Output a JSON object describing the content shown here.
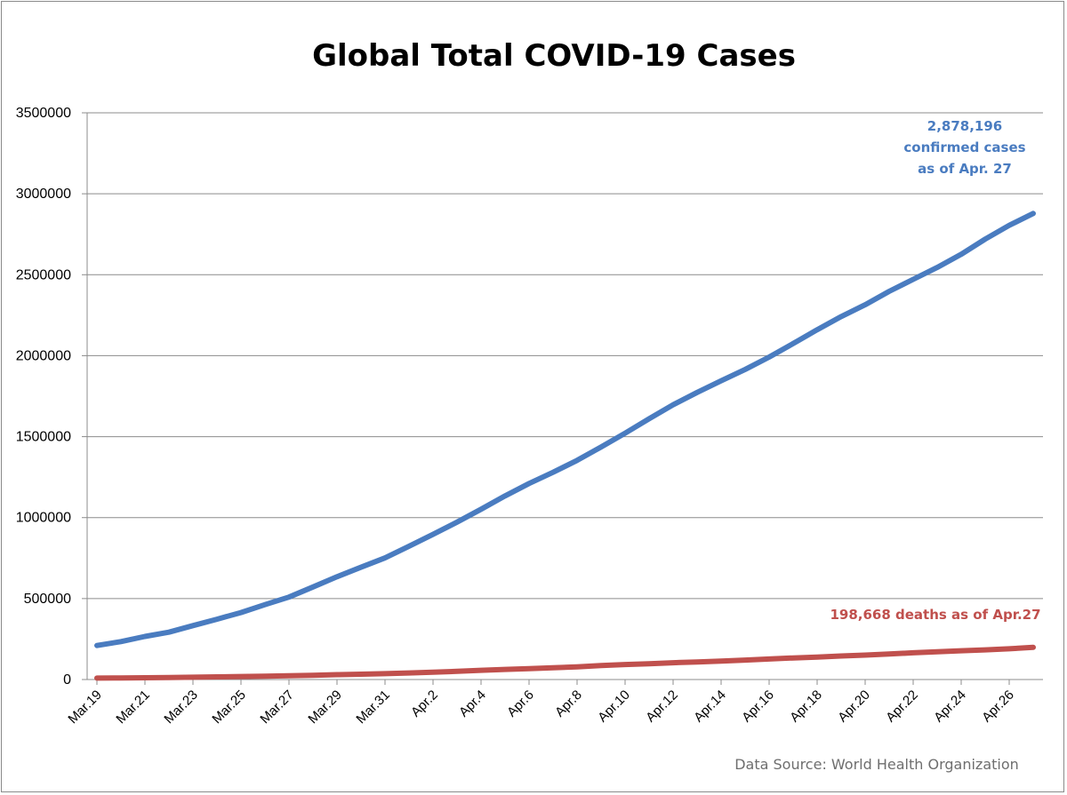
{
  "chart_data": {
    "type": "line",
    "title": "Global Total COVID-19 Cases",
    "xlabel": "",
    "ylabel": "",
    "ylim": [
      0,
      3500000
    ],
    "yticks": [
      0,
      500000,
      1000000,
      1500000,
      2000000,
      2500000,
      3000000,
      3500000
    ],
    "ytick_labels": [
      "0",
      "500000",
      "1000000",
      "1500000",
      "2000000",
      "2500000",
      "3000000",
      "3500000"
    ],
    "grid": true,
    "x": [
      "Mar.19",
      "Mar.20",
      "Mar.21",
      "Mar.22",
      "Mar.23",
      "Mar.24",
      "Mar.25",
      "Mar.26",
      "Mar.27",
      "Mar.28",
      "Mar.29",
      "Mar.30",
      "Mar.31",
      "Apr.1",
      "Apr.2",
      "Apr.3",
      "Apr.4",
      "Apr.5",
      "Apr.6",
      "Apr.7",
      "Apr.8",
      "Apr.9",
      "Apr.10",
      "Apr.11",
      "Apr.12",
      "Apr.13",
      "Apr.14",
      "Apr.15",
      "Apr.16",
      "Apr.17",
      "Apr.18",
      "Apr.19",
      "Apr.20",
      "Apr.21",
      "Apr.22",
      "Apr.23",
      "Apr.24",
      "Apr.25",
      "Apr.26",
      "Apr.27"
    ],
    "xtick_labels": [
      "Mar.19",
      "Mar.21",
      "Mar.23",
      "Mar.25",
      "Mar.27",
      "Mar.29",
      "Mar.31",
      "Apr.2",
      "Apr.4",
      "Apr.6",
      "Apr.8",
      "Apr.10",
      "Apr.12",
      "Apr.14",
      "Apr.16",
      "Apr.18",
      "Apr.20",
      "Apr.22",
      "Apr.24",
      "Apr.26"
    ],
    "series": [
      {
        "color": "#4a7cc0",
        "values": [
          209839,
          234073,
          266073,
          292142,
          332930,
          372757,
          413467,
          462684,
          509164,
          571678,
          634835,
          693224,
          750890,
          823626,
          896450,
          972303,
          1051635,
          1133758,
          1210956,
          1279722,
          1353361,
          1436198,
          1521252,
          1610909,
          1696588,
          1773084,
          1844863,
          1914916,
          1991562,
          2074529,
          2160207,
          2241778,
          2314621,
          2397216,
          2471136,
          2544792,
          2626321,
          2719896,
          2804796,
          2878196
        ]
      },
      {
        "color": "#c0504d",
        "values": [
          8778,
          10048,
          11184,
          12783,
          14510,
          16231,
          18433,
          21031,
          23335,
          26494,
          29957,
          33106,
          36405,
          40598,
          45525,
          50325,
          56985,
          62784,
          67594,
          72614,
          78269,
          86442,
          92799,
          97231,
          103648,
          108785,
          114067,
          120035,
          126712,
          133354,
          138586,
          145163,
          150947,
          157471,
          164923,
          171393,
          177641,
          183011,
          189856,
          198668
        ]
      }
    ],
    "annotations": {
      "cases_line1": "2,878,196",
      "cases_line2": "confirmed cases",
      "cases_line3": "as of Apr. 27",
      "deaths": "198,668 deaths as of Apr.27"
    },
    "source": "Data Source: World Health Organization"
  }
}
